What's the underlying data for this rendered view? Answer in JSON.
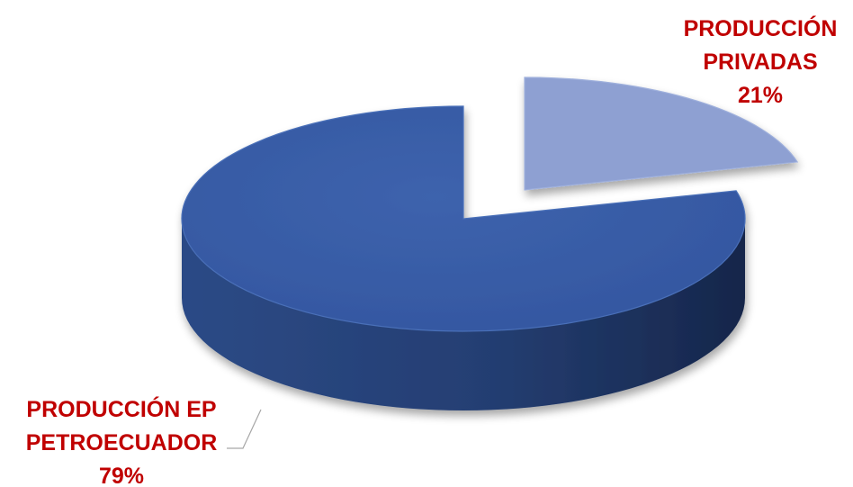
{
  "chart_data": {
    "type": "pie",
    "style": "3d-exploded",
    "slices": [
      {
        "name": "PRODUCCIÓN EP PETROECUADOR",
        "label_lines": [
          "PRODUCCIÓN EP",
          "PETROECUADOR"
        ],
        "value": 79,
        "percent_label": "79%",
        "color": "#3A5FA6"
      },
      {
        "name": "PRODUCCIÓN PRIVADAS",
        "label_lines": [
          "PRODUCCIÓN",
          "PRIVADAS"
        ],
        "value": 21,
        "percent_label": "21%",
        "color": "#8EA0D2"
      }
    ],
    "label_color": "#C00000",
    "title": ""
  }
}
